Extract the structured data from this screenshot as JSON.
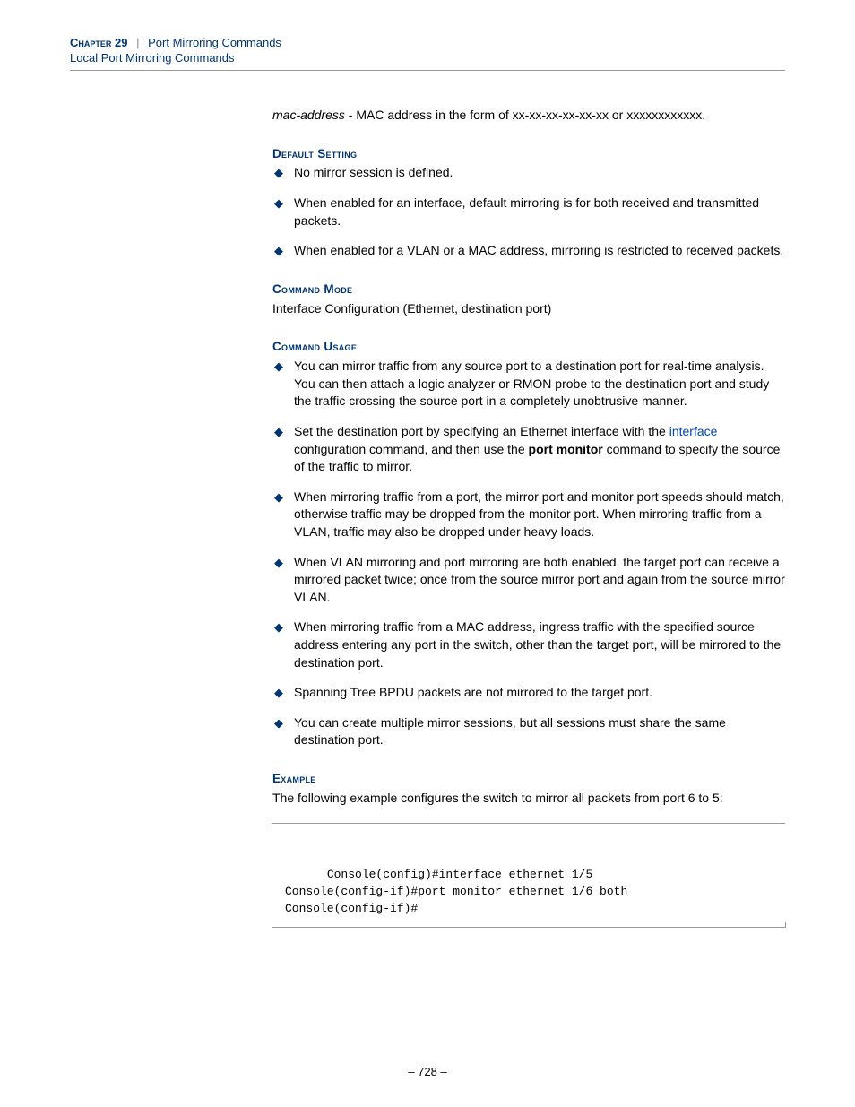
{
  "header": {
    "chapter": "Chapter 29",
    "divider": "|",
    "title": "Port Mirroring Commands",
    "subtitle": "Local Port Mirroring Commands"
  },
  "intro": {
    "term": "mac-address",
    "desc": " - MAC address in the form of xx-xx-xx-xx-xx-xx or xxxxxxxxxxxx."
  },
  "sections": {
    "default_setting": {
      "head": "Default Setting",
      "items": [
        "No mirror session is defined.",
        "When enabled for an interface, default mirroring is for both received and transmitted packets.",
        "When enabled for a VLAN or a MAC address, mirroring is restricted to received packets."
      ]
    },
    "command_mode": {
      "head": "Command Mode",
      "body": "Interface Configuration (Ethernet, destination port)"
    },
    "command_usage": {
      "head": "Command Usage",
      "items": [
        {
          "pre": "You can mirror traffic from any source port to a destination port for real-time analysis. You can then attach a logic analyzer or RMON probe to the destination port and study the traffic crossing the source port in a completely unobtrusive manner."
        },
        {
          "pre": "Set the destination port by specifying an Ethernet interface with the ",
          "link": "interface",
          "mid": " configuration command, and then use the ",
          "bold": "port monitor",
          "post": " command to specify the source of the traffic to mirror."
        },
        {
          "pre": "When mirroring traffic from a port, the mirror port and monitor port speeds should match, otherwise traffic may be dropped from the monitor port. When mirroring traffic from a VLAN, traffic may also be dropped under heavy loads."
        },
        {
          "pre": "When VLAN mirroring and port mirroring are both enabled, the target port can receive a mirrored packet twice; once from the source mirror port and again from the source mirror VLAN."
        },
        {
          "pre": "When mirroring traffic from a MAC address, ingress traffic with the specified source address entering any port in the switch, other than the target port, will be mirrored to the destination port."
        },
        {
          "pre": "Spanning Tree BPDU packets are not mirrored to the target port."
        },
        {
          "pre": "You can create multiple mirror sessions, but all sessions must share the same destination port."
        }
      ]
    },
    "example": {
      "head": "Example",
      "body": "The following example configures the switch to mirror all packets from port 6 to 5:",
      "code_lines": [
        "Console(config)#interface ethernet 1/5",
        "Console(config-if)#port monitor ethernet 1/6 both",
        "Console(config-if)#"
      ]
    }
  },
  "page_number": "–  728  –"
}
